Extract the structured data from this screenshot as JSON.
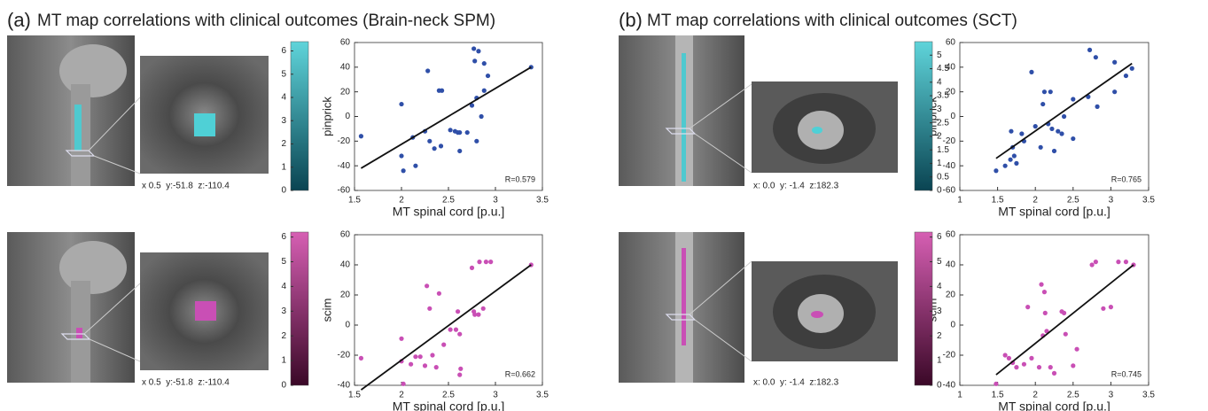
{
  "panels": [
    {
      "label": "(a)",
      "title": "MT map correlations with clinical outcomes (Brain-neck SPM)"
    },
    {
      "label": "(b)",
      "title": "MT map correlations with clinical outcomes (SCT)"
    }
  ],
  "captions": [
    "x 0.5  y:-51.8  z:-110.4",
    "x 0.5  y:-51.8  z:-110.4",
    "x: 0.0  y: -1.4  z:182.3",
    "x: 0.0  y: -1.4  z:182.3"
  ],
  "chart_data": [
    {
      "type": "scatter",
      "color": "#2f4fa8",
      "x_label": "MT spinal cord [p.u.]",
      "y_label": "pinprick",
      "annotation": "R=0.579",
      "xlim": [
        1.5,
        3.5
      ],
      "xticks": [
        1.5,
        2,
        2.5,
        3,
        3.5
      ],
      "ylim": [
        -60,
        60
      ],
      "yticks": [
        -60,
        -40,
        -20,
        0,
        20,
        40,
        60
      ],
      "x": [
        1.57,
        2.0,
        2.0,
        2.02,
        2.12,
        2.15,
        2.25,
        2.28,
        2.3,
        2.35,
        2.4,
        2.43,
        2.42,
        2.52,
        2.57,
        2.6,
        2.62,
        2.62,
        2.7,
        2.75,
        2.77,
        2.78,
        2.8,
        2.8,
        2.82,
        2.85,
        2.88,
        2.88,
        2.92,
        3.38
      ],
      "values": [
        -16,
        10,
        -32,
        -44,
        -17,
        -40,
        -12,
        37,
        -20,
        -26,
        21,
        21,
        -24,
        -11,
        -12,
        -13,
        -28,
        -13,
        -13,
        9,
        55,
        45,
        15,
        -20,
        53,
        0,
        21,
        43,
        33,
        40
      ],
      "fit": {
        "x": [
          1.57,
          3.38
        ],
        "values": [
          -42,
          40
        ]
      }
    },
    {
      "type": "scatter",
      "color": "#c94fb5",
      "x_label": "MT spinal cord [p.u.]",
      "y_label": "scim",
      "annotation": "R=0.662",
      "xlim": [
        1.5,
        3.5
      ],
      "xticks": [
        1.5,
        2,
        2.5,
        3,
        3.5
      ],
      "ylim": [
        -40,
        60
      ],
      "yticks": [
        -40,
        -20,
        0,
        20,
        40,
        60
      ],
      "x": [
        1.57,
        2.0,
        2.0,
        2.02,
        2.1,
        2.15,
        2.2,
        2.25,
        2.27,
        2.3,
        2.33,
        2.37,
        2.4,
        2.45,
        2.52,
        2.58,
        2.6,
        2.62,
        2.62,
        2.63,
        2.75,
        2.77,
        2.78,
        2.82,
        2.83,
        2.87,
        2.9,
        2.95,
        3.38
      ],
      "values": [
        -22,
        -9,
        -24,
        -39,
        -26,
        -21,
        -21,
        -27,
        26,
        11,
        -20,
        -28,
        21,
        -13,
        -3,
        -3,
        9,
        -6,
        -33,
        -29,
        38,
        9,
        7,
        7,
        42,
        11,
        42,
        42,
        40
      ],
      "fit": {
        "x": [
          1.57,
          3.38
        ],
        "values": [
          -43,
          40
        ]
      }
    },
    {
      "type": "scatter",
      "color": "#2f4fa8",
      "x_label": "MT spinal cord [p.u.]",
      "y_label": "pinprick",
      "annotation": "R=0.765",
      "xlim": [
        1,
        3.5
      ],
      "xticks": [
        1,
        1.5,
        2,
        2.5,
        3,
        3.5
      ],
      "ylim": [
        -60,
        60
      ],
      "yticks": [
        -60,
        -40,
        -20,
        0,
        20,
        40,
        60
      ],
      "x": [
        1.48,
        1.6,
        1.67,
        1.68,
        1.7,
        1.72,
        1.75,
        1.82,
        1.85,
        1.95,
        2.0,
        2.07,
        2.1,
        2.12,
        2.17,
        2.2,
        2.22,
        2.25,
        2.3,
        2.35,
        2.38,
        2.5,
        2.5,
        2.7,
        2.72,
        2.8,
        2.82,
        3.05,
        3.05,
        3.2,
        3.28
      ],
      "values": [
        -44,
        -40,
        -35,
        -12,
        -25,
        -32,
        -38,
        -14,
        -20,
        36,
        -8,
        -25,
        10,
        20,
        -6,
        20,
        -10,
        -28,
        -12,
        -14,
        0,
        14,
        -18,
        16,
        54,
        48,
        8,
        44,
        20,
        33,
        39
      ],
      "fit": {
        "x": [
          1.48,
          3.28
        ],
        "values": [
          -34,
          43
        ]
      }
    },
    {
      "type": "scatter",
      "color": "#c94fb5",
      "x_label": "MT spinal cord [p.u.]",
      "y_label": "scim",
      "annotation": "R=0.745",
      "xlim": [
        1,
        3.5
      ],
      "xticks": [
        1,
        1.5,
        2,
        2.5,
        3,
        3.5
      ],
      "ylim": [
        -40,
        60
      ],
      "yticks": [
        -40,
        -20,
        0,
        20,
        40,
        60
      ],
      "x": [
        1.48,
        1.6,
        1.65,
        1.7,
        1.75,
        1.85,
        1.9,
        1.95,
        2.05,
        2.08,
        2.1,
        2.12,
        2.13,
        2.15,
        2.2,
        2.25,
        2.35,
        2.38,
        2.4,
        2.5,
        2.55,
        2.75,
        2.8,
        2.9,
        3.0,
        3.1,
        3.2,
        3.3
      ],
      "values": [
        -39,
        -20,
        -22,
        -25,
        -28,
        -26,
        12,
        -22,
        -28,
        27,
        -7,
        22,
        8,
        -4,
        -28,
        -32,
        9,
        8,
        -6,
        -27,
        -16,
        40,
        42,
        11,
        12,
        42,
        42,
        40
      ],
      "fit": {
        "x": [
          1.48,
          3.3
        ],
        "values": [
          -33,
          40
        ]
      }
    },
    {
      "type": "colorbar",
      "colors": [
        "#5fd4da",
        "#0a4452"
      ],
      "tick_side": "left",
      "ylim": [
        0,
        6.4
      ],
      "yticks": [
        0,
        1,
        2,
        3,
        4,
        5,
        6
      ]
    },
    {
      "type": "colorbar",
      "colors": [
        "#d65fb3",
        "#3a0827"
      ],
      "tick_side": "left",
      "ylim": [
        0,
        6.2
      ],
      "yticks": [
        0,
        1,
        2,
        3,
        4,
        5,
        6
      ]
    },
    {
      "type": "colorbar",
      "colors": [
        "#5fd4da",
        "#0a4452"
      ],
      "tick_side": "right",
      "ylim": [
        0,
        5.5
      ],
      "yticks": [
        0,
        0.5,
        1,
        1.5,
        2,
        2.5,
        3,
        3.5,
        4,
        4.5,
        5
      ]
    },
    {
      "type": "colorbar",
      "colors": [
        "#d65fb3",
        "#3a0827"
      ],
      "tick_side": "right",
      "ylim": [
        0,
        6.2
      ],
      "yticks": [
        0,
        1,
        2,
        3,
        4,
        5,
        6
      ]
    }
  ]
}
